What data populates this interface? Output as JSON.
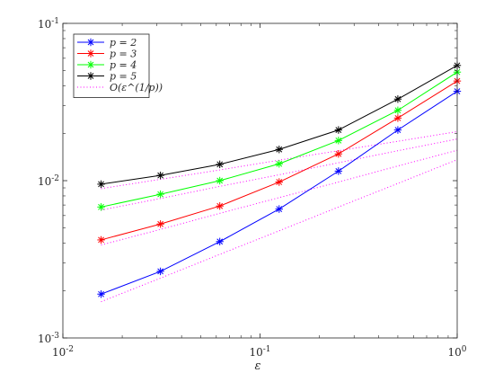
{
  "chart_data": {
    "type": "line",
    "xscale": "log",
    "yscale": "log",
    "xlim": [
      0.01,
      1
    ],
    "ylim": [
      0.001,
      0.1
    ],
    "xlabel": "ε",
    "ylabel": "",
    "title": "",
    "grid": false,
    "legend_position": "top-left",
    "x_ticks": [
      {
        "value": 0.01,
        "base": "10",
        "exp": "-2"
      },
      {
        "value": 0.1,
        "base": "10",
        "exp": "-1"
      },
      {
        "value": 1,
        "base": "10",
        "exp": "0"
      }
    ],
    "y_ticks": [
      {
        "value": 0.001,
        "base": "10",
        "exp": "-3"
      },
      {
        "value": 0.01,
        "base": "10",
        "exp": "-2"
      },
      {
        "value": 0.1,
        "base": "10",
        "exp": "-1"
      }
    ],
    "x": [
      0.015625,
      0.03125,
      0.0625,
      0.125,
      0.25,
      0.5,
      1
    ],
    "series": [
      {
        "name": "p = 2",
        "color": "#0000ff",
        "values": [
          0.0019,
          0.00265,
          0.0041,
          0.0066,
          0.0115,
          0.021,
          0.037
        ]
      },
      {
        "name": "p = 3",
        "color": "#ff0000",
        "values": [
          0.0042,
          0.0053,
          0.0069,
          0.0098,
          0.0148,
          0.025,
          0.043
        ]
      },
      {
        "name": "p = 4",
        "color": "#00ff00",
        "values": [
          0.0068,
          0.0082,
          0.01,
          0.0128,
          0.018,
          0.028,
          0.049
        ]
      },
      {
        "name": "p = 5",
        "color": "#000000",
        "values": [
          0.0095,
          0.0108,
          0.0127,
          0.0158,
          0.021,
          0.033,
          0.054
        ]
      }
    ],
    "reference_lines": {
      "name": "O(ε^(1/p))",
      "color": "#ff00ff",
      "style": "dotted",
      "series": [
        {
          "values": [
            0.0017,
            0.0024,
            0.0034,
            0.0048,
            0.0068,
            0.0096,
            0.0136
          ]
        },
        {
          "values": [
            0.0039,
            0.0049,
            0.0062,
            0.0078,
            0.0098,
            0.0124,
            0.0156
          ]
        },
        {
          "values": [
            0.0065,
            0.0077,
            0.0092,
            0.0109,
            0.013,
            0.0155,
            0.0184
          ]
        },
        {
          "values": [
            0.0089,
            0.0102,
            0.0117,
            0.0135,
            0.0155,
            0.0178,
            0.0205
          ]
        }
      ]
    },
    "legend": [
      {
        "label": "p = 2",
        "color": "#0000ff",
        "style": "solid-star"
      },
      {
        "label": "p = 3",
        "color": "#ff0000",
        "style": "solid-star"
      },
      {
        "label": "p = 4",
        "color": "#00ff00",
        "style": "solid-star"
      },
      {
        "label": "p = 5",
        "color": "#000000",
        "style": "solid-star"
      },
      {
        "label": "O(ε^(1/p))",
        "color": "#ff00ff",
        "style": "dotted"
      }
    ]
  }
}
